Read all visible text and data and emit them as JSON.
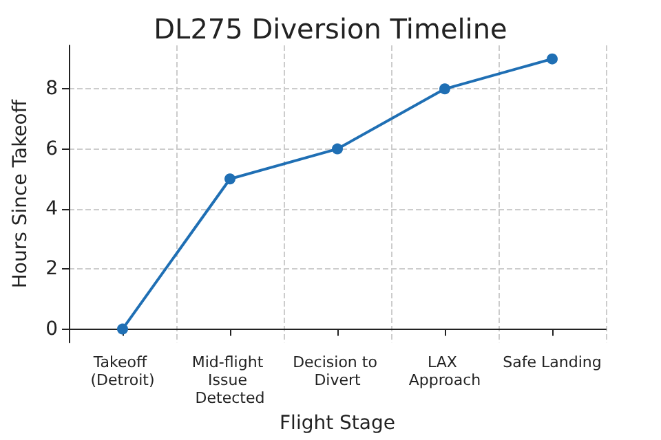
{
  "chart_data": {
    "type": "line",
    "title": "DL275 Diversion Timeline",
    "xlabel": "Flight Stage",
    "ylabel": "Hours Since Takeoff",
    "categories": [
      "Takeoff (Detroit)",
      "Mid-flight Issue Detected",
      "Decision to Divert",
      "LAX Approach",
      "Safe Landing"
    ],
    "series": [
      {
        "color": "#1f6fb4",
        "values": [
          0,
          5,
          6,
          8,
          9
        ]
      }
    ],
    "ylim": [
      -0.45,
      9.45
    ],
    "yticks": [
      0,
      2,
      4,
      6,
      8
    ],
    "grid": true,
    "marker": "circle",
    "line_style": "solid"
  }
}
